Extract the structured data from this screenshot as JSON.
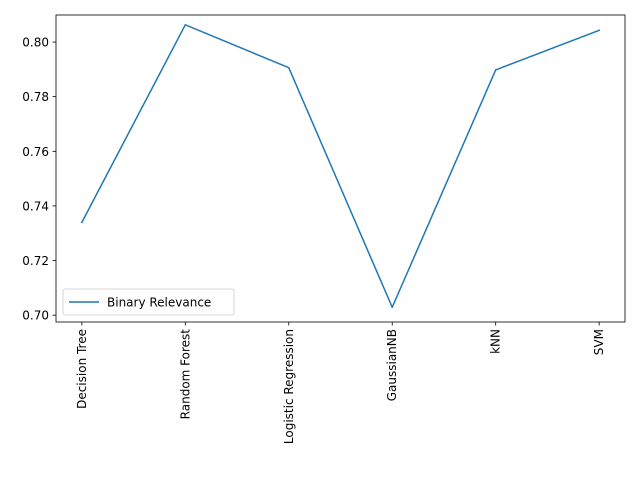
{
  "chart_data": {
    "type": "line",
    "categories": [
      "Decision Tree",
      "Random Forest",
      "Logistic Regression",
      "GaussianNB",
      "kNN",
      "SVM"
    ],
    "series": [
      {
        "name": "Binary Relevance",
        "values": [
          0.734,
          0.8063,
          0.7906,
          0.7029,
          0.7898,
          0.8043
        ],
        "color": "#1f77b4"
      }
    ],
    "title": "",
    "xlabel": "",
    "ylabel": "",
    "ylim": [
      0.6975,
      0.8099
    ],
    "yticks": [
      0.7,
      0.72,
      0.74,
      0.76,
      0.78,
      0.8
    ],
    "ytick_labels": [
      "0.70",
      "0.72",
      "0.74",
      "0.76",
      "0.78",
      "0.80"
    ],
    "grid": false,
    "legend": {
      "position": "lower-left"
    }
  }
}
